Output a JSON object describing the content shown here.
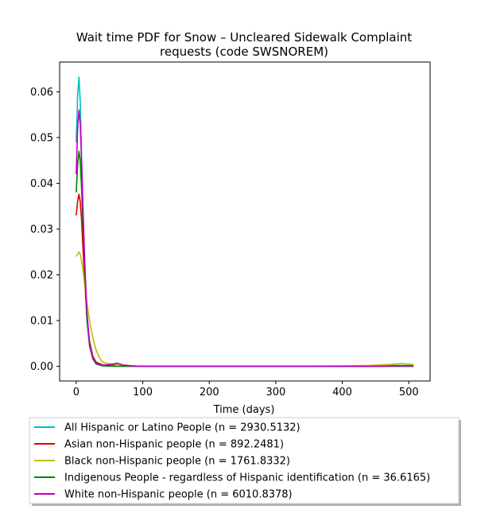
{
  "chart_data": {
    "type": "line",
    "title_line1": "Wait time PDF for Snow – Uncleared Sidewalk Complaint",
    "title_line2": "requests (code SWSNOREM)",
    "xlabel": "Time (days)",
    "ylabel": "",
    "xlim": [
      -25,
      532
    ],
    "ylim": [
      -0.0032,
      0.0665
    ],
    "xticks": [
      0,
      100,
      200,
      300,
      400,
      500
    ],
    "xtick_labels": [
      "0",
      "100",
      "200",
      "300",
      "400",
      "500"
    ],
    "yticks": [
      0.0,
      0.01,
      0.02,
      0.03,
      0.04,
      0.05,
      0.06
    ],
    "ytick_labels": [
      "0.00",
      "0.01",
      "0.02",
      "0.03",
      "0.04",
      "0.05",
      "0.06"
    ],
    "grid": false,
    "legend_position": "below-plot",
    "series": [
      {
        "name": "All Hispanic or Latino People (n = 2930.5132)",
        "color": "#00bfbf",
        "points": [
          [
            0,
            0.049
          ],
          [
            2,
            0.059
          ],
          [
            4,
            0.0632
          ],
          [
            6,
            0.058
          ],
          [
            8,
            0.046
          ],
          [
            10,
            0.034
          ],
          [
            13,
            0.02
          ],
          [
            16,
            0.01
          ],
          [
            20,
            0.0045
          ],
          [
            25,
            0.0018
          ],
          [
            30,
            0.0007
          ],
          [
            40,
            0.0002
          ],
          [
            55,
            0.0003
          ],
          [
            62,
            0.0004
          ],
          [
            70,
            0.0002
          ],
          [
            90,
            0.0
          ],
          [
            200,
            0.0
          ],
          [
            300,
            0.0
          ],
          [
            400,
            0.0
          ],
          [
            450,
            0.0001
          ],
          [
            480,
            0.0002
          ],
          [
            507,
            0.0002
          ]
        ]
      },
      {
        "name": "Asian non-Hispanic people (n = 892.2481)",
        "color": "#dd0000",
        "points": [
          [
            0,
            0.033
          ],
          [
            2,
            0.036
          ],
          [
            4,
            0.0376
          ],
          [
            6,
            0.036
          ],
          [
            8,
            0.032
          ],
          [
            10,
            0.026
          ],
          [
            13,
            0.018
          ],
          [
            16,
            0.011
          ],
          [
            20,
            0.0055
          ],
          [
            25,
            0.0022
          ],
          [
            30,
            0.0009
          ],
          [
            40,
            0.0003
          ],
          [
            55,
            0.0004
          ],
          [
            62,
            0.0005
          ],
          [
            70,
            0.0002
          ],
          [
            90,
            0.0
          ],
          [
            200,
            0.0
          ],
          [
            300,
            0.0
          ],
          [
            400,
            0.0
          ],
          [
            450,
            0.0
          ],
          [
            480,
            0.0001
          ],
          [
            507,
            0.0001
          ]
        ]
      },
      {
        "name": "Black non-Hispanic people (n = 1761.8332)",
        "color": "#bfbf00",
        "points": [
          [
            0,
            0.024
          ],
          [
            2,
            0.0245
          ],
          [
            4,
            0.025
          ],
          [
            6,
            0.0245
          ],
          [
            8,
            0.023
          ],
          [
            10,
            0.021
          ],
          [
            13,
            0.0175
          ],
          [
            16,
            0.014
          ],
          [
            20,
            0.01
          ],
          [
            25,
            0.0062
          ],
          [
            30,
            0.0035
          ],
          [
            35,
            0.0018
          ],
          [
            40,
            0.0009
          ],
          [
            50,
            0.0005
          ],
          [
            60,
            0.0005
          ],
          [
            70,
            0.0003
          ],
          [
            90,
            0.0001
          ],
          [
            120,
            0.0
          ],
          [
            200,
            0.0
          ],
          [
            300,
            0.0
          ],
          [
            400,
            0.0001
          ],
          [
            440,
            0.0002
          ],
          [
            470,
            0.0004
          ],
          [
            490,
            0.0006
          ],
          [
            500,
            0.0005
          ],
          [
            507,
            0.0004
          ]
        ]
      },
      {
        "name": "Indigenous People - regardless of Hispanic identification (n = 36.6165)",
        "color": "#008000",
        "points": [
          [
            0,
            0.038
          ],
          [
            2,
            0.044
          ],
          [
            4,
            0.047
          ],
          [
            6,
            0.045
          ],
          [
            8,
            0.039
          ],
          [
            10,
            0.031
          ],
          [
            13,
            0.02
          ],
          [
            16,
            0.011
          ],
          [
            20,
            0.0045
          ],
          [
            25,
            0.0016
          ],
          [
            30,
            0.0005
          ],
          [
            40,
            0.0001
          ],
          [
            60,
            0.0
          ],
          [
            200,
            0.0
          ],
          [
            300,
            0.0
          ],
          [
            400,
            0.0
          ],
          [
            507,
            0.0
          ]
        ]
      },
      {
        "name": "White non-Hispanic people (n = 6010.8378)",
        "color": "#bf00bf",
        "points": [
          [
            0,
            0.042
          ],
          [
            2,
            0.052
          ],
          [
            4,
            0.056
          ],
          [
            6,
            0.053
          ],
          [
            8,
            0.045
          ],
          [
            10,
            0.035
          ],
          [
            13,
            0.022
          ],
          [
            16,
            0.012
          ],
          [
            20,
            0.005
          ],
          [
            25,
            0.0019
          ],
          [
            30,
            0.0007
          ],
          [
            40,
            0.0002
          ],
          [
            55,
            0.0005
          ],
          [
            62,
            0.0007
          ],
          [
            70,
            0.0003
          ],
          [
            90,
            0.0
          ],
          [
            200,
            0.0
          ],
          [
            300,
            0.0
          ],
          [
            400,
            0.0
          ],
          [
            450,
            0.0
          ],
          [
            480,
            0.0001
          ],
          [
            507,
            0.0001
          ]
        ]
      }
    ]
  }
}
